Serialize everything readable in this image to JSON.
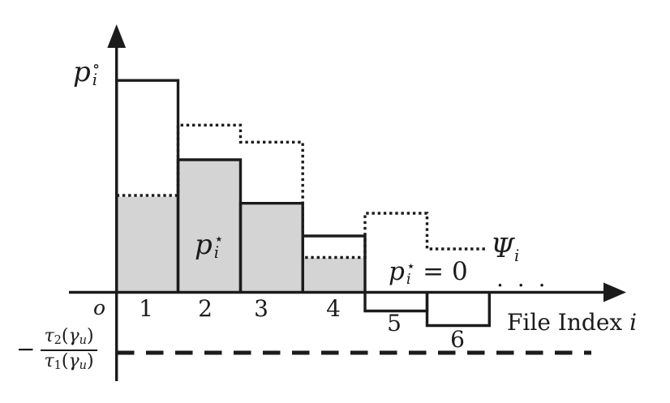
{
  "colors": {
    "ink": "#1b1b1b",
    "bar_fill": "#d4d4d4",
    "background": "#ffffff"
  },
  "labels": {
    "p_circle": {
      "base": "p",
      "sup": "∘",
      "sub": "i"
    },
    "p_star": {
      "base": "p",
      "sup": "⋆",
      "sub": "i"
    },
    "p_star_zero": {
      "base": "p",
      "sup": "⋆",
      "sub": "i",
      "rest": "= 0"
    },
    "psi": {
      "base": "Ψ",
      "sub": "i"
    },
    "dots": ". . .",
    "origin": "o",
    "ticks": [
      "1",
      "2",
      "3",
      "4",
      "5",
      "6"
    ],
    "file_index": [
      {
        "t": "File Index ",
        "s": "n"
      },
      {
        "t": "i",
        "s": "i"
      }
    ],
    "frac": {
      "minus": "−",
      "num": [
        {
          "t": "τ",
          "s": "i"
        },
        {
          "t": "2",
          "s": "sub"
        },
        {
          "t": "(",
          "s": "n"
        },
        {
          "t": "γ",
          "s": "i"
        },
        {
          "t": "u",
          "s": "subi"
        },
        {
          "t": ")",
          "s": "n"
        }
      ],
      "den": [
        {
          "t": "τ",
          "s": "i"
        },
        {
          "t": "1",
          "s": "sub"
        },
        {
          "t": "(",
          "s": "n"
        },
        {
          "t": "γ",
          "s": "i"
        },
        {
          "t": "u",
          "s": "subi"
        },
        {
          "t": ")",
          "s": "n"
        }
      ]
    }
  },
  "chart_data": {
    "type": "bar",
    "title": "Water-filling style power allocation over file indices (schematic, no numeric axis)",
    "xlabel": "File Index i",
    "ylabel": "p_i",
    "categories": [
      "1",
      "2",
      "3",
      "4",
      "5",
      "6"
    ],
    "series": [
      {
        "name": "p_i_circle (solid step outline, can be negative)",
        "values": [
          262,
          164,
          110,
          70,
          -23,
          -41
        ]
      },
      {
        "name": "p_i_star (gray filled bars, truncated at 0)",
        "values": [
          120,
          164,
          110,
          43,
          0,
          0
        ]
      },
      {
        "name": "Psi_i (dotted step line)",
        "values": [
          120,
          206,
          185,
          43,
          98,
          54
        ]
      }
    ],
    "unit": "relative height in pixels above the x-axis (schematic units)",
    "threshold_dashed_line": {
      "label": "−τ2(γu)/τ1(γu)",
      "value": -75
    },
    "annotations": [
      "p_i^⋆ = 0 for files 5, 6, …",
      "Ψ_i labels the dotted step line",
      "… indicates continuation beyond file 6"
    ],
    "legend_position": "none",
    "grid": false
  }
}
